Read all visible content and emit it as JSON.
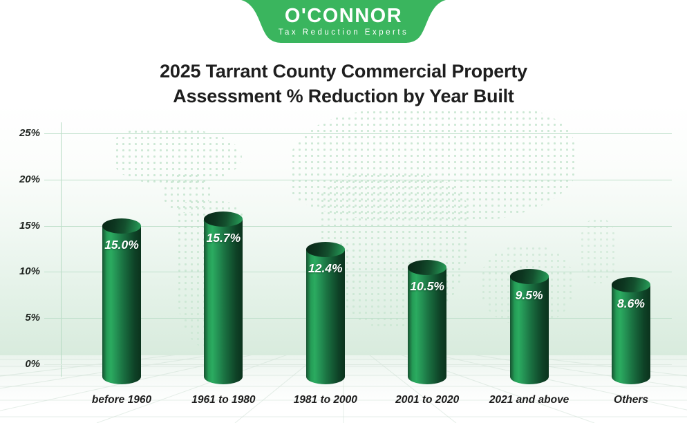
{
  "logo": {
    "brand": "O'CONNOR",
    "tagline": "Tax Reduction Experts"
  },
  "title": {
    "line1": "2025 Tarrant County Commercial Property",
    "line2": "Assessment % Reduction by Year Built"
  },
  "chart_data": {
    "type": "bar",
    "bar_style": "3d-cylinder",
    "title": "2025 Tarrant County Commercial Property Assessment % Reduction by Year Built",
    "categories": [
      "before 1960",
      "1961 to 1980",
      "1981 to 2000",
      "2001 to 2020",
      "2021 and above",
      "Others"
    ],
    "values": [
      15.0,
      15.7,
      12.4,
      10.5,
      9.5,
      8.6
    ],
    "value_labels": [
      "15.0%",
      "15.7%",
      "12.4%",
      "10.5%",
      "9.5%",
      "8.6%"
    ],
    "xlabel": "",
    "ylabel": "",
    "ylim": [
      0,
      25
    ],
    "yticks": [
      25,
      20,
      15,
      10,
      5,
      0
    ],
    "ytick_labels": [
      "25%",
      "20%",
      "15%",
      "10%",
      "5%",
      "0%"
    ],
    "grid": true,
    "legend": "none",
    "background": "light green gradient wall with dotted world map and perspective floor"
  },
  "colors": {
    "badge_green": "#3ab55e",
    "bar_highlight": "#2bab60",
    "bar_dark": "#0b331d",
    "gridline": "#bedfca",
    "wall_tint": "#d8ebdd",
    "map_dots": "#cde8d5",
    "title_text": "#1e1e1e",
    "axis_label_text": "#1d221e",
    "value_text": "#ffffff"
  }
}
